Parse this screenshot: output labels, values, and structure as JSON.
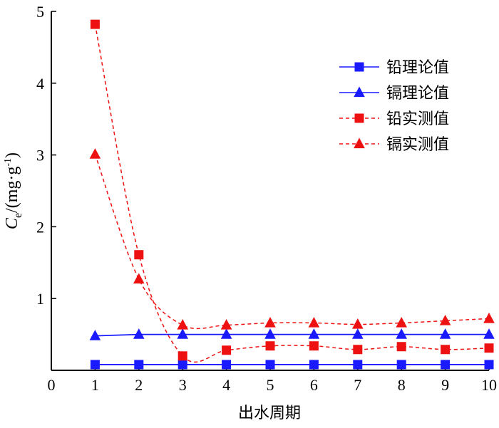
{
  "chart_data": {
    "type": "line",
    "xlabel": "出水周期",
    "ylabel": {
      "symbol": "C",
      "subscript": "e",
      "unit_open": "/(mg·g",
      "unit_sup": "-1",
      "unit_close": ")"
    },
    "x_ticks": [
      "0",
      "1",
      "2",
      "3",
      "4",
      "5",
      "6",
      "7",
      "8",
      "9",
      "10"
    ],
    "y_ticks": [
      "1",
      "2",
      "3",
      "4",
      "5"
    ],
    "xlim": [
      0,
      10
    ],
    "ylim": [
      0,
      5
    ],
    "legend_position": "top-right",
    "grid": false,
    "series": [
      {
        "name": "铅理论值",
        "marker": "square",
        "color": "#1a1aff",
        "line": "solid",
        "x": [
          1,
          2,
          3,
          4,
          5,
          6,
          7,
          8,
          9,
          10
        ],
        "y": [
          0.08,
          0.08,
          0.08,
          0.08,
          0.08,
          0.08,
          0.08,
          0.08,
          0.08,
          0.08
        ]
      },
      {
        "name": "镉理论值",
        "marker": "triangle",
        "color": "#1a1aff",
        "line": "solid",
        "x": [
          1,
          2,
          3,
          4,
          5,
          6,
          7,
          8,
          9,
          10
        ],
        "y": [
          0.48,
          0.5,
          0.5,
          0.5,
          0.5,
          0.5,
          0.5,
          0.5,
          0.5,
          0.5
        ]
      },
      {
        "name": "铅实测值",
        "marker": "square",
        "color": "#ee1111",
        "line": "dashed",
        "x": [
          1,
          2,
          3,
          4,
          5,
          6,
          7,
          8,
          9,
          10
        ],
        "y": [
          4.82,
          1.61,
          0.2,
          0.28,
          0.34,
          0.34,
          0.29,
          0.33,
          0.29,
          0.31
        ]
      },
      {
        "name": "镉实测值",
        "marker": "triangle",
        "color": "#ee1111",
        "line": "dashed",
        "x": [
          1,
          2,
          3,
          4,
          5,
          6,
          7,
          8,
          9,
          10
        ],
        "y": [
          3.01,
          1.27,
          0.63,
          0.63,
          0.66,
          0.66,
          0.64,
          0.66,
          0.69,
          0.72
        ]
      }
    ]
  }
}
